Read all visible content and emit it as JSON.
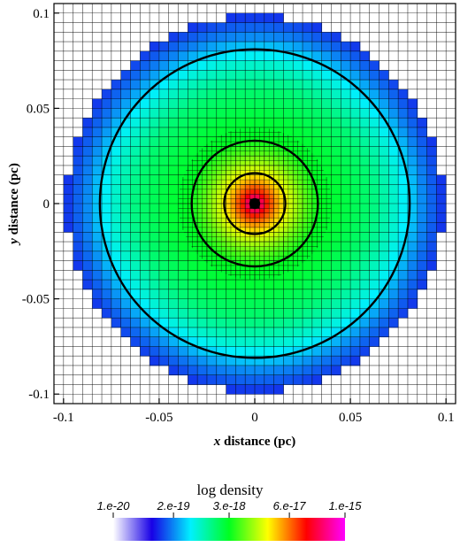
{
  "chart_data": {
    "type": "heatmap",
    "title": "",
    "xlabel": {
      "var": "x",
      "text": " distance (pc)"
    },
    "ylabel": {
      "var": "y",
      "text": " distance (pc)"
    },
    "xlim": [
      -0.105,
      0.105
    ],
    "ylim": [
      -0.105,
      0.105
    ],
    "x_ticks": [
      {
        "value": -0.1,
        "label": "-0.1"
      },
      {
        "value": -0.05,
        "label": "-0.05"
      },
      {
        "value": 0,
        "label": "0"
      },
      {
        "value": 0.05,
        "label": "0.05"
      },
      {
        "value": 0.1,
        "label": "0.1"
      }
    ],
    "y_ticks": [
      {
        "value": 0.1,
        "label": "0.1"
      },
      {
        "value": 0.05,
        "label": "0.05"
      },
      {
        "value": 0,
        "label": "0"
      },
      {
        "value": -0.05,
        "label": "-0.05"
      },
      {
        "value": -0.1,
        "label": "-0.1"
      }
    ],
    "field_radius_pc": 0.099,
    "grid_cell_pc": 0.005,
    "refined_cell_pc": 0.0025,
    "refined_radius_pc": 0.04,
    "density_profile": [
      {
        "r": 0.0,
        "log_density": -15.0
      },
      {
        "r": 0.002,
        "log_density": -15.3
      },
      {
        "r": 0.006,
        "log_density": -15.9
      },
      {
        "r": 0.012,
        "log_density": -16.4
      },
      {
        "r": 0.018,
        "log_density": -16.8
      },
      {
        "r": 0.026,
        "log_density": -17.2
      },
      {
        "r": 0.034,
        "log_density": -17.5
      },
      {
        "r": 0.045,
        "log_density": -17.6
      },
      {
        "r": 0.06,
        "log_density": -17.8
      },
      {
        "r": 0.075,
        "log_density": -18.2
      },
      {
        "r": 0.088,
        "log_density": -18.7
      },
      {
        "r": 0.099,
        "log_density": -19.0
      }
    ],
    "contours": [
      {
        "radius_pc": 0.0025
      },
      {
        "radius_pc": 0.016
      },
      {
        "radius_pc": 0.033
      },
      {
        "radius_pc": 0.081
      }
    ],
    "colorbar": {
      "title": "log density",
      "ticks": [
        {
          "label": "1.e-20",
          "log_value": -20.0
        },
        {
          "label": "2.e-19",
          "log_value": -18.7
        },
        {
          "label": "3.e-18",
          "log_value": -17.5
        },
        {
          "label": "6.e-17",
          "log_value": -16.2
        },
        {
          "label": "1.e-15",
          "log_value": -15.0
        }
      ],
      "range_log": [
        -20,
        -15
      ],
      "color_stops": [
        "#ffffff",
        "#1800e6",
        "#00f0ff",
        "#00ff20",
        "#ffff00",
        "#ff0000",
        "#ff00ff"
      ]
    }
  }
}
